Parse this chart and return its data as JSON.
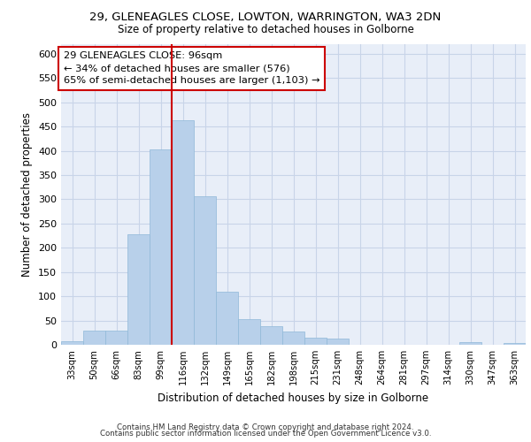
{
  "title_line1": "29, GLENEAGLES CLOSE, LOWTON, WARRINGTON, WA3 2DN",
  "title_line2": "Size of property relative to detached houses in Golborne",
  "xlabel": "Distribution of detached houses by size in Golborne",
  "ylabel": "Number of detached properties",
  "categories": [
    "33sqm",
    "50sqm",
    "66sqm",
    "83sqm",
    "99sqm",
    "116sqm",
    "132sqm",
    "149sqm",
    "165sqm",
    "182sqm",
    "198sqm",
    "215sqm",
    "231sqm",
    "248sqm",
    "264sqm",
    "281sqm",
    "297sqm",
    "314sqm",
    "330sqm",
    "347sqm",
    "363sqm"
  ],
  "values": [
    7,
    30,
    30,
    228,
    403,
    463,
    307,
    110,
    53,
    39,
    27,
    15,
    13,
    0,
    0,
    0,
    0,
    0,
    5,
    0,
    3
  ],
  "bar_color": "#b8d0ea",
  "bar_edgecolor": "#b8d0ea",
  "grid_color": "#c8d4e8",
  "background_color": "#e8eef8",
  "annotation_text": "29 GLENEAGLES CLOSE: 96sqm\n← 34% of detached houses are smaller (576)\n65% of semi-detached houses are larger (1,103) →",
  "annotation_box_color": "#ffffff",
  "annotation_box_edgecolor": "#cc0000",
  "vline_color": "#cc0000",
  "vline_x": 4.5,
  "footnote_line1": "Contains HM Land Registry data © Crown copyright and database right 2024.",
  "footnote_line2": "Contains public sector information licensed under the Open Government Licence v3.0.",
  "ylim": [
    0,
    620
  ],
  "yticks": [
    0,
    50,
    100,
    150,
    200,
    250,
    300,
    350,
    400,
    450,
    500,
    550,
    600
  ]
}
